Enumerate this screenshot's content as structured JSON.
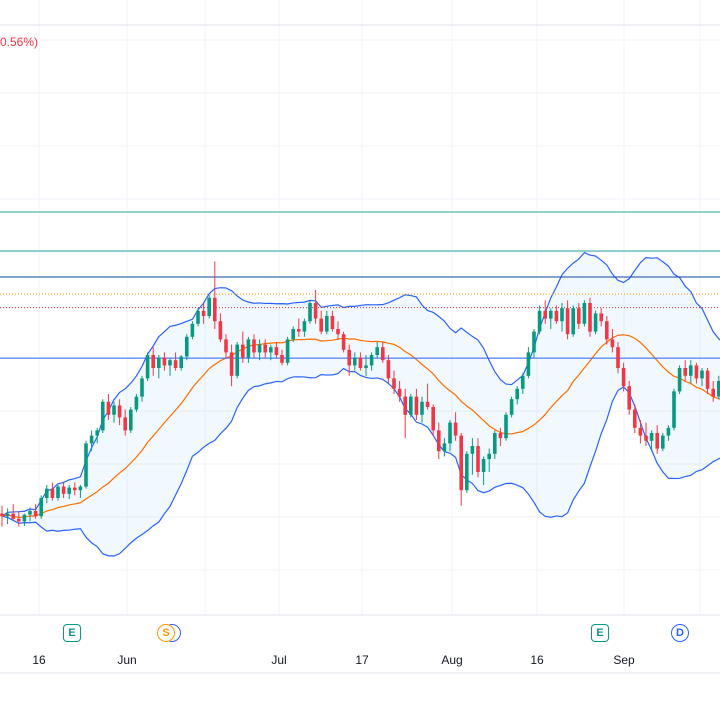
{
  "header": {
    "change_text": "0.56%)"
  },
  "colors": {
    "up": "#089981",
    "down": "#f23645",
    "bollinger_band": "#2962ff",
    "bollinger_fill": "#2196f3",
    "basis": "#ff6d00",
    "teal_line": "#26a69a",
    "navy_line": "#0d47a1",
    "blue_line": "#2962ff",
    "dotted_orange": "#ff9800",
    "dotted_red": "#d32f2f",
    "grid": "#f0f3fa",
    "text": "#131722"
  },
  "x_axis": {
    "labels": [
      "16",
      "Jun",
      "Jul",
      "17",
      "Aug",
      "16",
      "Sep"
    ]
  },
  "events": [
    {
      "type": "E",
      "icon": "earnings-icon",
      "color": "#089981"
    },
    {
      "type": "S",
      "icon": "split-icon",
      "color": "#ff9800"
    },
    {
      "type": "E",
      "icon": "earnings-icon",
      "color": "#089981"
    },
    {
      "type": "D",
      "icon": "dividend-icon",
      "color": "#2962ff"
    }
  ],
  "chart_data": {
    "type": "candlestick",
    "indicator": "bollinger_bands",
    "horizontal_lines": [
      {
        "value": 160.0,
        "color": "#26a69a",
        "style": "solid"
      },
      {
        "value": 152.5,
        "color": "#26a69a",
        "style": "solid"
      },
      {
        "value": 147.5,
        "color": "#0d47a1",
        "style": "solid"
      },
      {
        "value": 144.2,
        "color": "#ff9800",
        "style": "dotted"
      },
      {
        "value": 141.6,
        "color": "#d32f2f",
        "style": "dotted"
      },
      {
        "value": 131.9,
        "color": "#2962ff",
        "style": "solid"
      }
    ],
    "y_range": [
      80,
      170
    ],
    "candles": [
      [
        102.0,
        103.5,
        99.5,
        101.5
      ],
      [
        101.5,
        103.0,
        100.0,
        102.0
      ],
      [
        102.0,
        103.8,
        100.8,
        101.0
      ],
      [
        101.0,
        102.5,
        99.5,
        100.5
      ],
      [
        100.5,
        102.0,
        99.6,
        101.8
      ],
      [
        101.8,
        103.2,
        100.5,
        102.5
      ],
      [
        102.5,
        103.8,
        101.0,
        101.5
      ],
      [
        101.5,
        105.5,
        101.0,
        105.0
      ],
      [
        105.0,
        107.5,
        104.0,
        106.8
      ],
      [
        106.8,
        108.0,
        104.5,
        105.0
      ],
      [
        105.0,
        107.5,
        104.5,
        107.2
      ],
      [
        107.2,
        108.0,
        105.0,
        105.8
      ],
      [
        105.8,
        107.5,
        104.8,
        107.0
      ],
      [
        107.0,
        108.0,
        105.5,
        106.5
      ],
      [
        106.5,
        107.5,
        105.0,
        107.2
      ],
      [
        107.2,
        116.0,
        106.8,
        115.5
      ],
      [
        115.5,
        118.0,
        114.0,
        117.0
      ],
      [
        117.0,
        118.5,
        115.5,
        118.0
      ],
      [
        118.0,
        124.0,
        117.5,
        123.5
      ],
      [
        123.5,
        125.0,
        120.0,
        121.0
      ],
      [
        121.0,
        123.5,
        119.5,
        122.8
      ],
      [
        122.8,
        124.0,
        119.0,
        120.5
      ],
      [
        120.5,
        122.0,
        117.0,
        118.0
      ],
      [
        118.0,
        122.5,
        117.5,
        122.0
      ],
      [
        122.0,
        125.0,
        121.5,
        124.5
      ],
      [
        124.5,
        128.5,
        123.5,
        128.0
      ],
      [
        128.0,
        133.0,
        127.5,
        132.5
      ],
      [
        132.5,
        134.0,
        128.5,
        130.0
      ],
      [
        130.0,
        132.5,
        128.0,
        132.0
      ],
      [
        132.0,
        133.0,
        129.5,
        130.5
      ],
      [
        130.5,
        132.0,
        128.5,
        131.5
      ],
      [
        131.5,
        133.0,
        129.5,
        130.0
      ],
      [
        130.0,
        132.5,
        129.5,
        132.2
      ],
      [
        132.2,
        136.5,
        131.5,
        136.0
      ],
      [
        136.0,
        139.0,
        135.5,
        138.5
      ],
      [
        138.5,
        141.5,
        138.0,
        141.0
      ],
      [
        141.0,
        142.5,
        138.5,
        140.0
      ],
      [
        140.0,
        144.0,
        139.5,
        143.5
      ],
      [
        143.5,
        150.5,
        137.5,
        139.0
      ],
      [
        139.0,
        140.5,
        135.0,
        135.5
      ],
      [
        135.5,
        136.5,
        132.0,
        133.0
      ],
      [
        133.0,
        134.5,
        126.5,
        128.5
      ],
      [
        128.5,
        135.0,
        128.0,
        134.5
      ],
      [
        134.5,
        137.0,
        131.0,
        132.0
      ],
      [
        132.0,
        136.0,
        131.0,
        135.5
      ],
      [
        135.5,
        136.5,
        132.0,
        133.0
      ],
      [
        133.0,
        135.5,
        131.5,
        134.5
      ],
      [
        134.5,
        135.5,
        132.0,
        133.0
      ],
      [
        133.0,
        134.5,
        131.5,
        134.0
      ],
      [
        134.0,
        135.0,
        132.0,
        132.5
      ],
      [
        132.5,
        133.5,
        130.5,
        131.0
      ],
      [
        131.0,
        136.0,
        130.5,
        135.5
      ],
      [
        135.5,
        138.0,
        135.0,
        137.5
      ],
      [
        137.5,
        139.5,
        136.0,
        137.0
      ],
      [
        137.0,
        139.5,
        136.0,
        139.0
      ],
      [
        139.0,
        143.0,
        138.5,
        142.5
      ],
      [
        142.5,
        145.0,
        138.5,
        139.5
      ],
      [
        139.5,
        141.0,
        136.5,
        137.0
      ],
      [
        137.0,
        141.0,
        136.5,
        140.0
      ],
      [
        140.0,
        141.0,
        137.0,
        137.5
      ],
      [
        137.5,
        139.0,
        135.5,
        136.5
      ],
      [
        136.5,
        137.0,
        133.0,
        133.5
      ],
      [
        133.5,
        134.5,
        128.5,
        130.5
      ],
      [
        130.5,
        133.0,
        129.5,
        132.0
      ],
      [
        132.0,
        133.0,
        129.5,
        130.0
      ],
      [
        130.0,
        132.5,
        128.5,
        130.5
      ],
      [
        130.5,
        133.0,
        129.5,
        132.5
      ],
      [
        132.5,
        135.0,
        132.0,
        134.0
      ],
      [
        134.0,
        135.0,
        131.0,
        131.5
      ],
      [
        131.5,
        132.5,
        127.0,
        128.0
      ],
      [
        128.0,
        129.5,
        125.0,
        126.0
      ],
      [
        126.0,
        127.5,
        123.5,
        124.5
      ],
      [
        124.5,
        126.0,
        116.5,
        121.0
      ],
      [
        121.0,
        125.0,
        120.5,
        124.5
      ],
      [
        124.5,
        126.0,
        120.0,
        121.0
      ],
      [
        121.0,
        124.5,
        119.5,
        123.5
      ],
      [
        123.5,
        127.0,
        122.0,
        122.5
      ],
      [
        122.5,
        123.0,
        117.0,
        118.0
      ],
      [
        118.0,
        119.5,
        112.5,
        114.0
      ],
      [
        114.0,
        116.5,
        113.0,
        115.5
      ],
      [
        115.5,
        120.0,
        114.0,
        119.5
      ],
      [
        119.5,
        121.5,
        116.0,
        117.0
      ],
      [
        117.0,
        117.5,
        103.5,
        106.5
      ],
      [
        106.5,
        114.0,
        106.0,
        113.5
      ],
      [
        113.5,
        116.5,
        109.5,
        115.0
      ],
      [
        115.0,
        116.5,
        109.0,
        110.0
      ],
      [
        110.0,
        113.0,
        107.5,
        112.5
      ],
      [
        112.5,
        114.5,
        110.0,
        113.5
      ],
      [
        113.5,
        118.0,
        112.5,
        117.5
      ],
      [
        117.5,
        118.5,
        115.0,
        116.5
      ],
      [
        116.5,
        121.5,
        116.0,
        121.0
      ],
      [
        121.0,
        124.5,
        120.5,
        124.0
      ],
      [
        124.0,
        126.5,
        123.0,
        126.0
      ],
      [
        126.0,
        129.0,
        125.0,
        128.5
      ],
      [
        128.5,
        134.0,
        128.0,
        133.0
      ],
      [
        133.0,
        137.5,
        132.0,
        137.0
      ],
      [
        137.0,
        142.0,
        136.5,
        141.0
      ],
      [
        141.0,
        143.0,
        138.5,
        139.5
      ],
      [
        139.5,
        141.5,
        137.5,
        141.0
      ],
      [
        141.0,
        142.0,
        138.5,
        139.0
      ],
      [
        139.0,
        142.5,
        137.0,
        141.5
      ],
      [
        141.5,
        143.0,
        135.5,
        136.5
      ],
      [
        136.5,
        142.0,
        136.0,
        141.5
      ],
      [
        141.5,
        142.5,
        137.5,
        138.5
      ],
      [
        138.5,
        143.0,
        138.0,
        142.5
      ],
      [
        142.5,
        143.5,
        136.0,
        137.0
      ],
      [
        137.0,
        141.0,
        136.5,
        140.5
      ],
      [
        140.5,
        141.5,
        138.0,
        139.0
      ],
      [
        139.0,
        140.0,
        134.5,
        135.5
      ],
      [
        135.5,
        137.5,
        133.0,
        134.0
      ],
      [
        134.0,
        135.0,
        129.0,
        130.0
      ],
      [
        130.0,
        131.0,
        125.5,
        126.5
      ],
      [
        126.5,
        127.5,
        121.0,
        122.0
      ],
      [
        122.0,
        123.0,
        117.5,
        118.5
      ],
      [
        118.5,
        120.0,
        115.5,
        117.0
      ],
      [
        117.0,
        119.5,
        115.0,
        116.0
      ],
      [
        116.0,
        118.0,
        114.0,
        117.5
      ],
      [
        117.5,
        119.0,
        113.5,
        114.5
      ],
      [
        114.5,
        117.5,
        114.0,
        117.0
      ],
      [
        117.0,
        119.0,
        116.0,
        118.5
      ],
      [
        118.5,
        126.0,
        118.0,
        125.5
      ],
      [
        125.5,
        130.5,
        125.0,
        130.0
      ],
      [
        130.0,
        131.5,
        127.5,
        128.5
      ],
      [
        128.5,
        131.5,
        127.0,
        130.5
      ],
      [
        130.5,
        131.0,
        127.0,
        128.0
      ],
      [
        128.0,
        130.0,
        126.5,
        129.5
      ],
      [
        129.5,
        130.0,
        125.0,
        126.0
      ],
      [
        126.0,
        127.5,
        123.5,
        124.5
      ],
      [
        124.5,
        128.5,
        124.0,
        127.5
      ],
      [
        127.5,
        130.5,
        127.0,
        129.5
      ]
    ],
    "x_tick_labels": [
      "16",
      "Jun",
      "Jul",
      "17",
      "Aug",
      "16",
      "Sep"
    ]
  }
}
